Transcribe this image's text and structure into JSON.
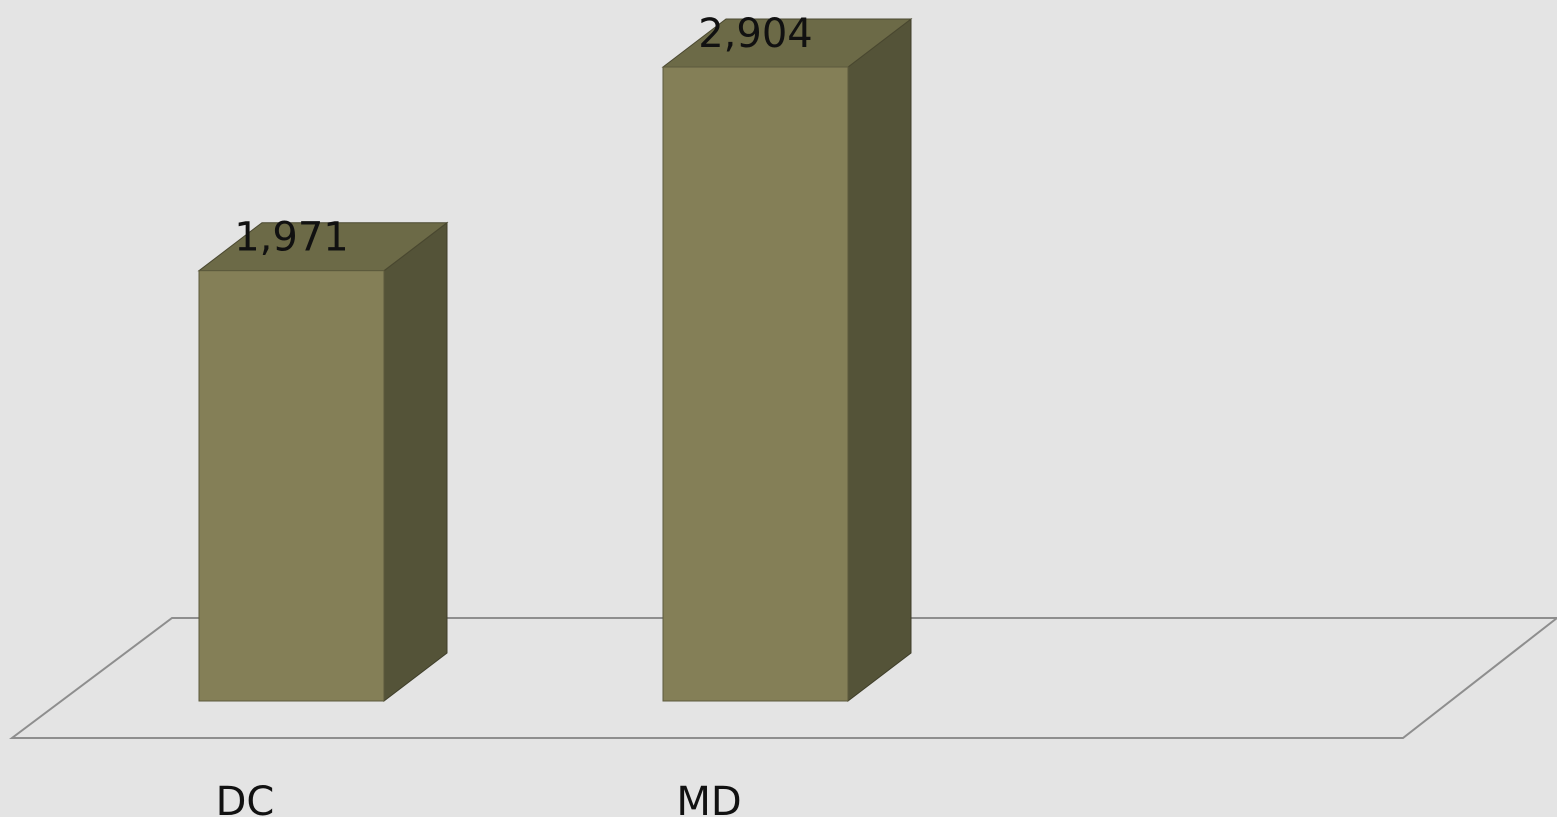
{
  "chart_data": {
    "type": "bar",
    "style": "3d-column",
    "categories": [
      "DC",
      "MD"
    ],
    "values": [
      1971,
      2904
    ],
    "data_labels": [
      "1,971",
      "2,904"
    ],
    "title": "",
    "xlabel": "",
    "ylabel": "",
    "ylim": [
      0,
      2904
    ],
    "grid": false,
    "legend": "none"
  },
  "colors": {
    "background": "#e4e4e4",
    "bar_front": "#847f57",
    "bar_side": "#545338",
    "bar_top": "#6c6a47",
    "floor_line": "#8e8e8e"
  }
}
